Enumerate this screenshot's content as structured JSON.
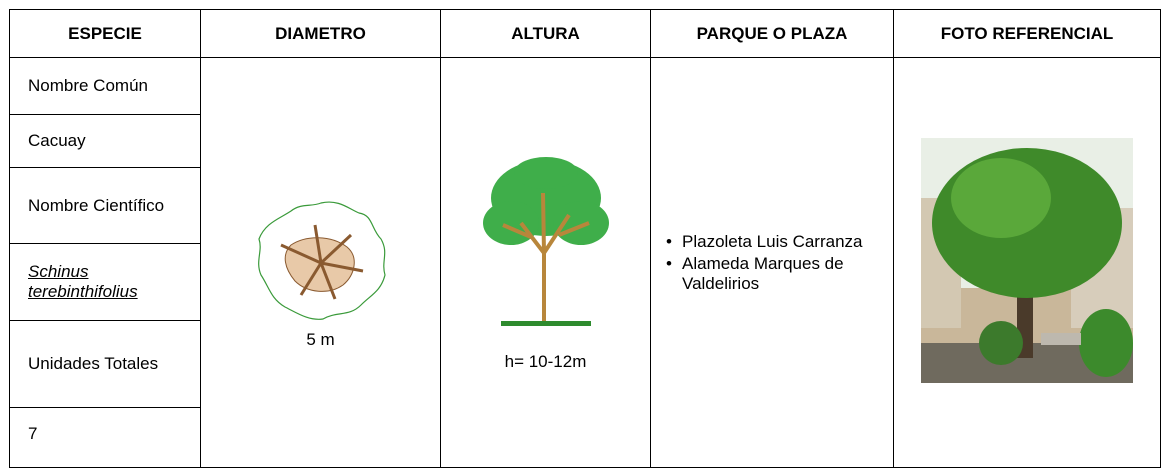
{
  "table": {
    "headers": [
      "ESPECIE",
      "DIAMETRO",
      "ALTURA",
      "PARQUE O PLAZA",
      "FOTO REFERENCIAL"
    ],
    "especie": [
      "Nombre Común",
      "Cacuay",
      "Nombre Científico",
      "Schinus terebinthifolius",
      "Unidades Totales",
      "7"
    ],
    "diametro": "5 m",
    "altura": "h= 10-12m",
    "parques": [
      "Plazoleta Luis Carranza",
      "Alameda Marques de Valdelirios"
    ]
  }
}
